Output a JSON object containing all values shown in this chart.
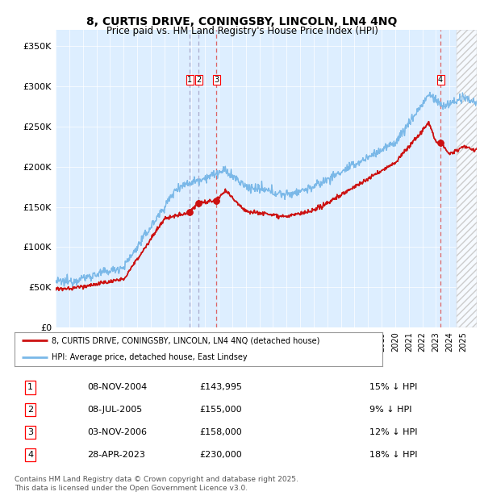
{
  "title": "8, CURTIS DRIVE, CONINGSBY, LINCOLN, LN4 4NQ",
  "subtitle": "Price paid vs. HM Land Registry's House Price Index (HPI)",
  "ylabel_ticks": [
    "£0",
    "£50K",
    "£100K",
    "£150K",
    "£200K",
    "£250K",
    "£300K",
    "£350K"
  ],
  "ytick_values": [
    0,
    50000,
    100000,
    150000,
    200000,
    250000,
    300000,
    350000
  ],
  "ylim": [
    0,
    370000
  ],
  "xlim_start": 1995.0,
  "xlim_end": 2026.0,
  "bg_color": "#ddeeff",
  "hpi_color": "#7ab8e8",
  "price_color": "#cc1111",
  "legend_label_price": "8, CURTIS DRIVE, CONINGSBY, LINCOLN, LN4 4NQ (detached house)",
  "legend_label_hpi": "HPI: Average price, detached house, East Lindsey",
  "transactions": [
    {
      "num": 1,
      "date": "08-NOV-2004",
      "date_num": 2004.86,
      "price": 143995,
      "pct": "15%",
      "dir": "↓"
    },
    {
      "num": 2,
      "date": "08-JUL-2005",
      "date_num": 2005.52,
      "price": 155000,
      "pct": "9%",
      "dir": "↓"
    },
    {
      "num": 3,
      "date": "03-NOV-2006",
      "date_num": 2006.84,
      "price": 158000,
      "pct": "12%",
      "dir": "↓"
    },
    {
      "num": 4,
      "date": "28-APR-2023",
      "date_num": 2023.33,
      "price": 230000,
      "pct": "18%",
      "dir": "↓"
    }
  ],
  "vline_colors": [
    "#aaaacc",
    "#aaaacc",
    "#dd6666",
    "#dd6666"
  ],
  "footer": "Contains HM Land Registry data © Crown copyright and database right 2025.\nThis data is licensed under the Open Government Licence v3.0.",
  "hatch_start": 2024.5
}
